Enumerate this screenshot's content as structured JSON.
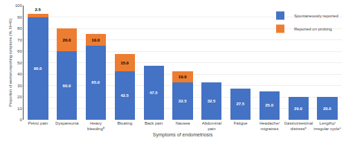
{
  "chart_data": {
    "type": "bar",
    "stacked": true,
    "categories": [
      "Pelvic pain",
      "Dyspareunia",
      "Heavy\nbleedingª",
      "Bloating",
      "Back pain",
      "Nausea",
      "Abdominal\npain",
      "Fatigue",
      "Headache/\nmigraines",
      "Gastrointestinal\ndistressᵇ",
      "Lengthy/\nirregular cycleᶜ"
    ],
    "series": [
      {
        "name": "Spontaneously reported",
        "color": "#4472C4",
        "values": [
          90.0,
          60.0,
          65.0,
          42.5,
          47.5,
          32.5,
          32.5,
          27.5,
          25.0,
          20.0,
          20.0
        ],
        "value_labels": [
          "90.0",
          "60.0",
          "65.0",
          "42.5",
          "47.5",
          "32.5",
          "32.5",
          "27.5",
          "25.0",
          "20.0",
          "20.0"
        ]
      },
      {
        "name": "Reported on probing",
        "color": "#ED7D31",
        "values": [
          2.5,
          20.0,
          10.0,
          15.0,
          0.0,
          10.0,
          0.0,
          0.0,
          0.0,
          0.0,
          0.0
        ],
        "value_labels": [
          "2.5",
          "20.0",
          "10.0",
          "15.0",
          null,
          "10.0",
          null,
          null,
          null,
          null,
          null
        ]
      }
    ],
    "xlabel": "Symptoms of endometriosis",
    "ylabel": "Proportion of women reporting symptoms (%, N=40)",
    "ylim": [
      0,
      100
    ],
    "yticks": [
      0,
      10,
      20,
      30,
      40,
      50,
      60,
      70,
      80,
      90,
      100
    ],
    "grid": true,
    "legend": "upper right",
    "data_labels": true
  }
}
